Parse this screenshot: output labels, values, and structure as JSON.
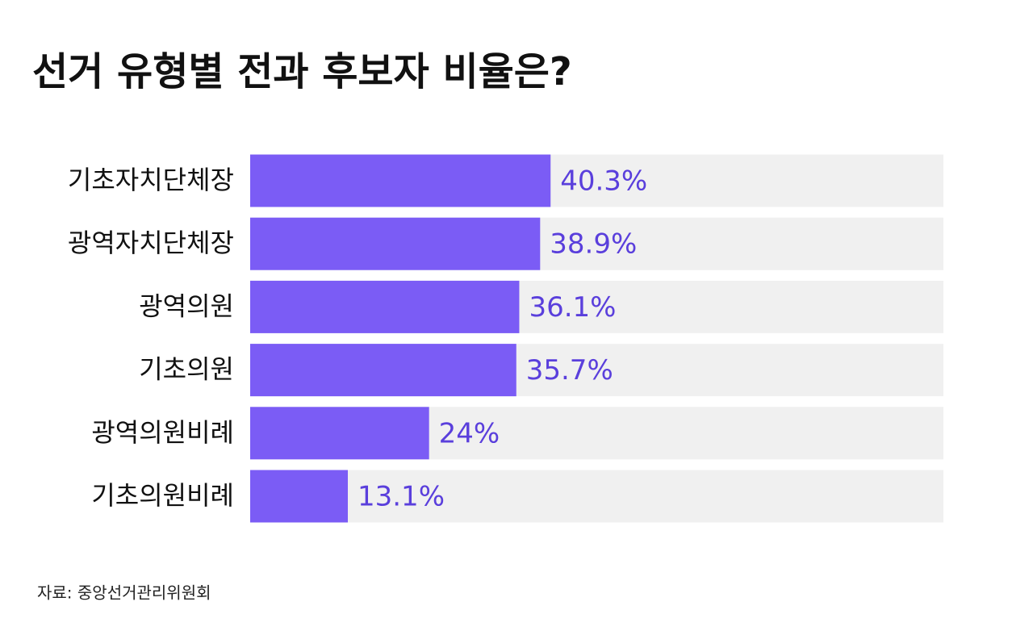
{
  "chart_data": {
    "type": "bar",
    "orientation": "horizontal",
    "title": "선거 유형별 전과 후보자 비율은?",
    "categories": [
      "기초자치단체장",
      "광역자치단체장",
      "광역의원",
      "기초의원",
      "광역의원비례",
      "기초의원비례"
    ],
    "values": [
      40.3,
      38.9,
      36.1,
      35.7,
      24,
      13.1
    ],
    "value_labels": [
      "40.3%",
      "38.9%",
      "36.1%",
      "35.7%",
      "24%",
      "13.1%"
    ],
    "color": "#7b5cf5",
    "label_color": "#5a3fdc",
    "track_color": "#f0f0f0",
    "xlim": [
      0,
      93
    ],
    "source": "자료: 중앙선거관리위원회"
  }
}
